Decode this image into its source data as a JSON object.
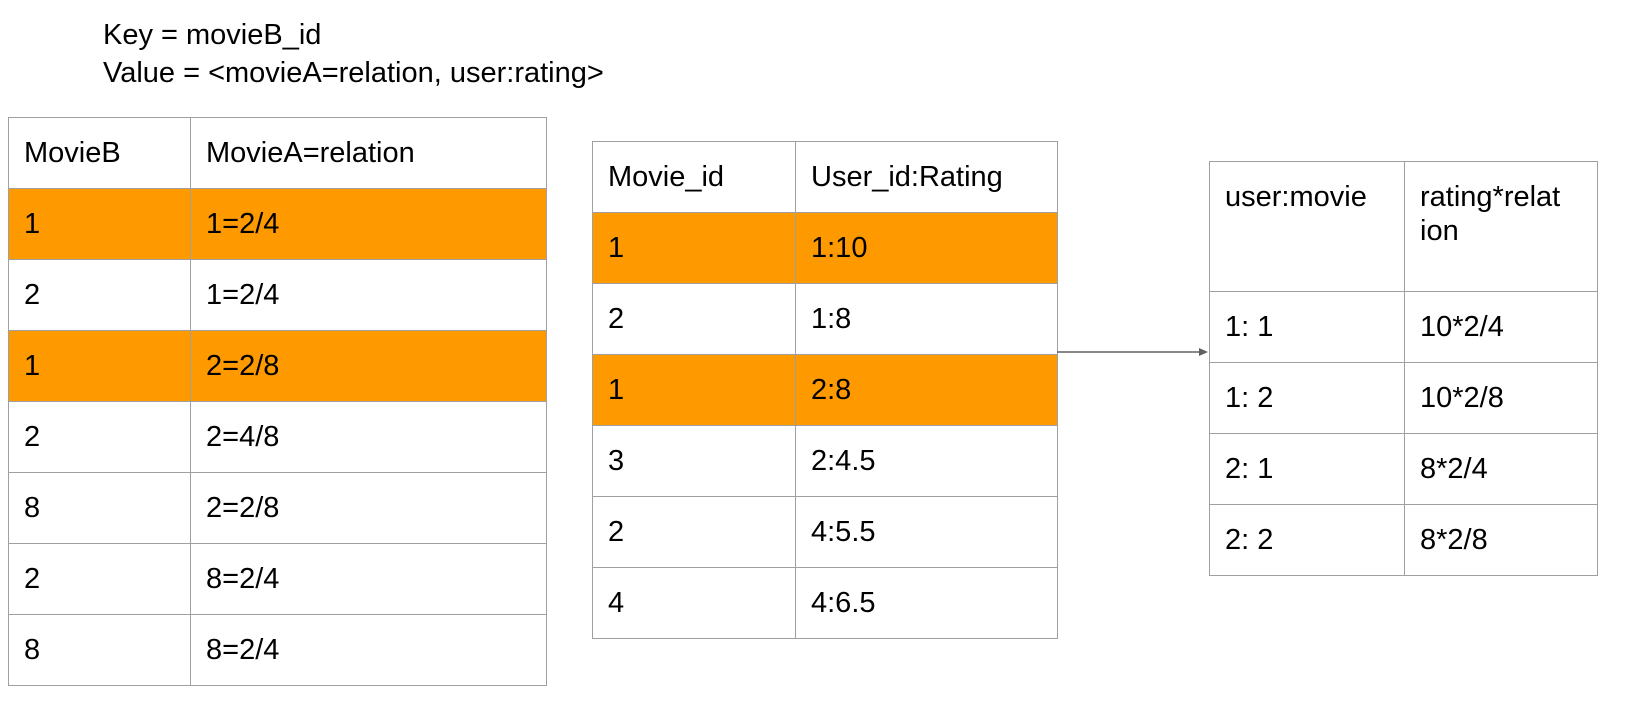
{
  "header": {
    "key_line": "Key = movieB_id",
    "value_line": "Value = <movieA=relation, user:rating>"
  },
  "colors": {
    "highlight": "#ff9900",
    "border": "#a0a0a0"
  },
  "table_left": {
    "headers": [
      "MovieB",
      "MovieA=relation"
    ],
    "rows": [
      {
        "cells": [
          "1",
          "1=2/4"
        ],
        "highlighted": true
      },
      {
        "cells": [
          "2",
          "1=2/4"
        ],
        "highlighted": false
      },
      {
        "cells": [
          "1",
          "2=2/8"
        ],
        "highlighted": true
      },
      {
        "cells": [
          "2",
          "2=4/8"
        ],
        "highlighted": false
      },
      {
        "cells": [
          "8",
          "2=2/8"
        ],
        "highlighted": false
      },
      {
        "cells": [
          "2",
          "8=2/4"
        ],
        "highlighted": false
      },
      {
        "cells": [
          "8",
          "8=2/4"
        ],
        "highlighted": false
      }
    ]
  },
  "table_middle": {
    "headers": [
      "Movie_id",
      "User_id:Rating"
    ],
    "rows": [
      {
        "cells": [
          "1",
          "1:10"
        ],
        "highlighted": true
      },
      {
        "cells": [
          "2",
          "1:8"
        ],
        "highlighted": false
      },
      {
        "cells": [
          "1",
          "2:8"
        ],
        "highlighted": true
      },
      {
        "cells": [
          "3",
          "2:4.5"
        ],
        "highlighted": false
      },
      {
        "cells": [
          "2",
          "4:5.5"
        ],
        "highlighted": false
      },
      {
        "cells": [
          "4",
          "4:6.5"
        ],
        "highlighted": false
      }
    ]
  },
  "table_right": {
    "headers": [
      "user:movie",
      "rating*relat\nion"
    ],
    "rows": [
      {
        "cells": [
          "1: 1",
          "10*2/4"
        ],
        "highlighted": false
      },
      {
        "cells": [
          "1: 2",
          "10*2/8"
        ],
        "highlighted": false
      },
      {
        "cells": [
          "2: 1",
          "8*2/4"
        ],
        "highlighted": false
      },
      {
        "cells": [
          "2: 2",
          "8*2/8"
        ],
        "highlighted": false
      }
    ]
  }
}
